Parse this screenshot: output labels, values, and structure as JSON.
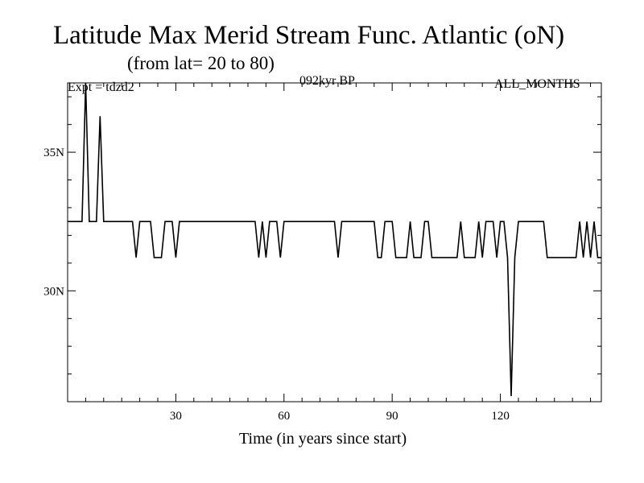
{
  "chart_data": {
    "type": "line",
    "title": "Latitude Max Merid Stream Func. Atlantic (oN)",
    "subtitle": "(from lat= 20 to 80)",
    "annotations": {
      "left": "Expt = tdzd2",
      "center": "092kyr BP",
      "right": "ALL_MONTHS"
    },
    "xlabel": "Time (in years since start)",
    "ylabel": "",
    "xlim": [
      0,
      148
    ],
    "ylim": [
      26.0,
      37.5
    ],
    "x_ticks": [
      30,
      60,
      90,
      120
    ],
    "x_tick_labels": [
      "30",
      "60",
      "90",
      "120"
    ],
    "y_ticks": [
      30,
      35
    ],
    "y_tick_labels": [
      "30N",
      "35N"
    ],
    "grid": false,
    "series": [
      {
        "name": "",
        "color": "#000000",
        "points": [
          [
            0,
            32.5
          ],
          [
            4,
            32.5
          ],
          [
            5,
            37.5
          ],
          [
            6,
            32.5
          ],
          [
            8,
            32.5
          ],
          [
            9,
            36.3
          ],
          [
            10,
            32.5
          ],
          [
            18,
            32.5
          ],
          [
            19,
            31.2
          ],
          [
            20,
            32.5
          ],
          [
            23,
            32.5
          ],
          [
            24,
            31.2
          ],
          [
            26,
            31.2
          ],
          [
            27,
            32.5
          ],
          [
            29,
            32.5
          ],
          [
            30,
            31.2
          ],
          [
            31,
            32.5
          ],
          [
            48,
            32.5
          ],
          [
            52,
            32.5
          ],
          [
            53,
            31.2
          ],
          [
            54,
            32.5
          ],
          [
            55,
            31.2
          ],
          [
            56,
            32.5
          ],
          [
            58,
            32.5
          ],
          [
            59,
            31.2
          ],
          [
            60,
            32.5
          ],
          [
            74,
            32.5
          ],
          [
            75,
            31.2
          ],
          [
            76,
            32.5
          ],
          [
            85,
            32.5
          ],
          [
            86,
            31.2
          ],
          [
            87,
            31.2
          ],
          [
            88,
            32.5
          ],
          [
            90,
            32.5
          ],
          [
            91,
            31.2
          ],
          [
            94,
            31.2
          ],
          [
            95,
            32.5
          ],
          [
            96,
            31.2
          ],
          [
            98,
            31.2
          ],
          [
            99,
            32.5
          ],
          [
            100,
            32.5
          ],
          [
            101,
            31.2
          ],
          [
            108,
            31.2
          ],
          [
            109,
            32.5
          ],
          [
            110,
            31.2
          ],
          [
            113,
            31.2
          ],
          [
            114,
            32.5
          ],
          [
            115,
            31.2
          ],
          [
            116,
            32.5
          ],
          [
            118,
            32.5
          ],
          [
            119,
            31.2
          ],
          [
            120,
            32.5
          ],
          [
            121,
            32.5
          ],
          [
            122,
            31.2
          ],
          [
            123,
            26.2
          ],
          [
            124,
            31.2
          ],
          [
            125,
            32.5
          ],
          [
            132,
            32.5
          ],
          [
            133,
            31.2
          ],
          [
            141,
            31.2
          ],
          [
            142,
            32.5
          ],
          [
            143,
            31.2
          ],
          [
            144,
            32.5
          ],
          [
            145,
            31.2
          ],
          [
            146,
            32.5
          ],
          [
            147,
            31.2
          ],
          [
            148,
            31.2
          ]
        ]
      }
    ]
  }
}
